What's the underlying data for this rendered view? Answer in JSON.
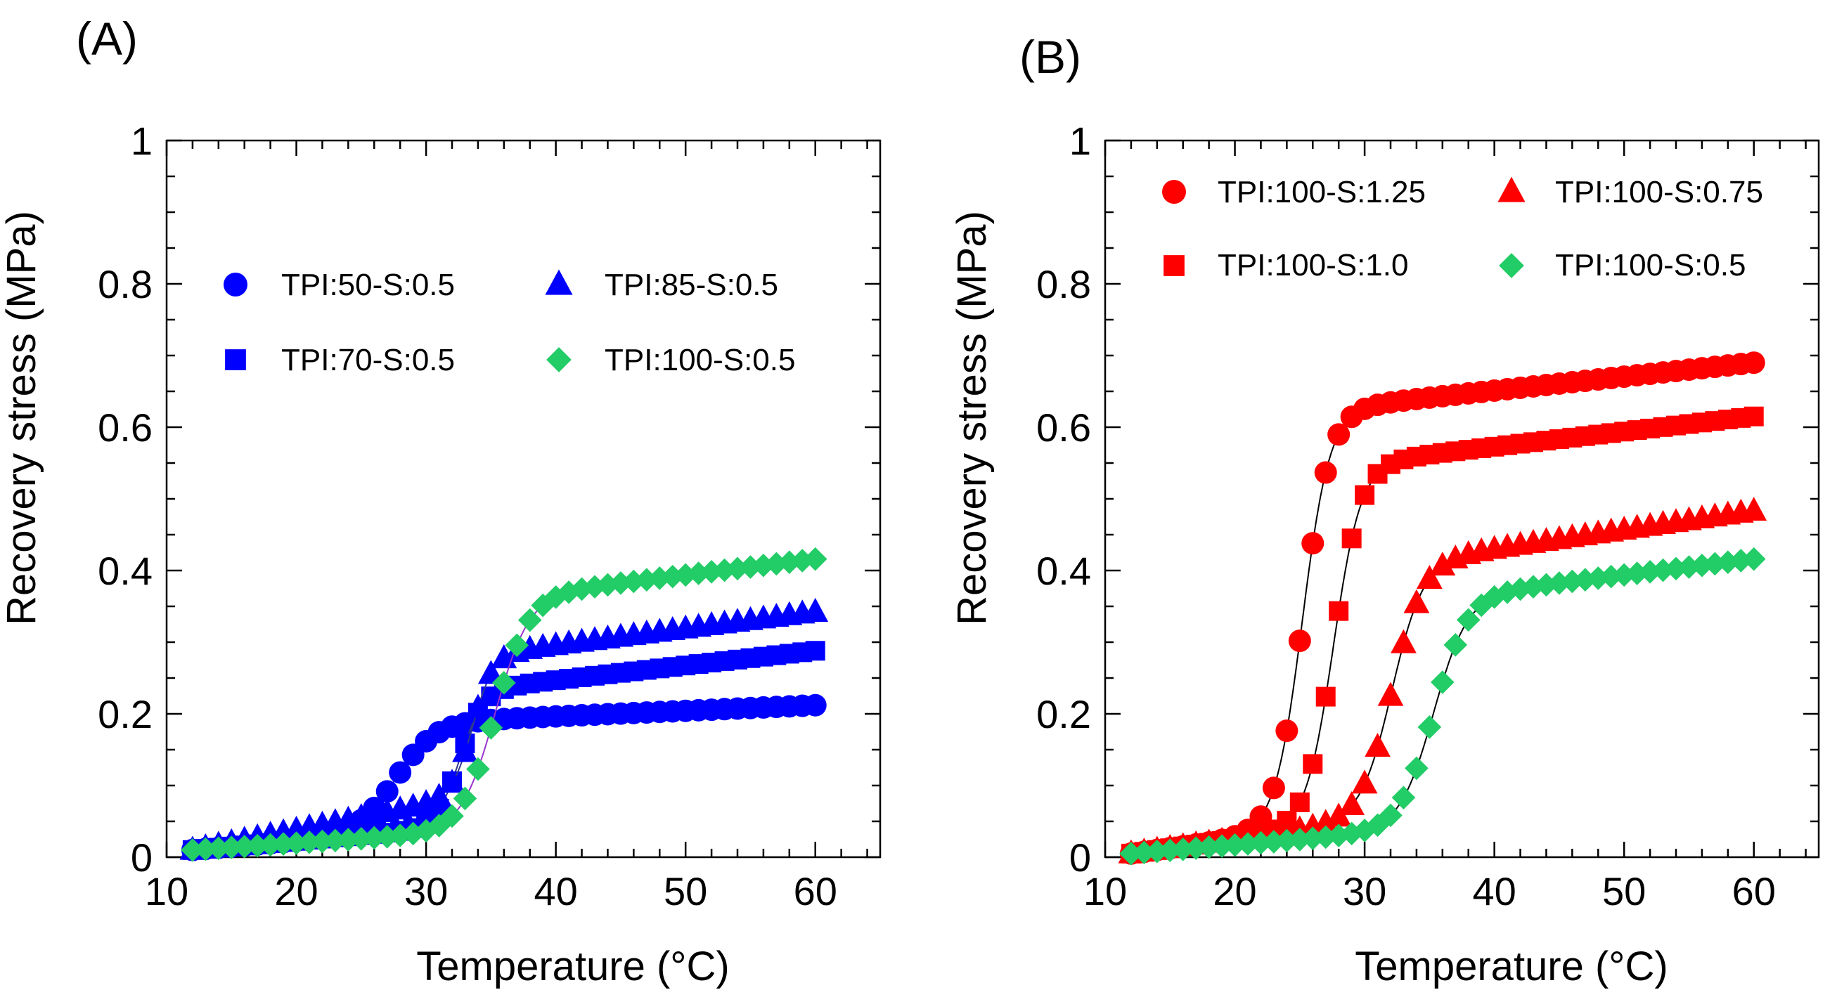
{
  "chart_data": [
    {
      "panel_label": "(A)",
      "type": "scatter",
      "xlabel": "Temperature (°C)",
      "ylabel": "Recovery stress (MPa)",
      "xlim": [
        10,
        65
      ],
      "ylim": [
        0,
        1
      ],
      "xticks": [
        "10",
        "20",
        "30",
        "40",
        "50",
        "60"
      ],
      "yticks": [
        "0",
        "0.2",
        "0.4",
        "0.6",
        "0.8",
        "1"
      ],
      "grid": false,
      "legend_position": "upper-left, two columns",
      "series": [
        {
          "name": "TPI:50-S:0.5",
          "marker": "circle",
          "color": "#0000ff",
          "line_color": "#2e3a8c",
          "x_start": 12,
          "x_end": 60,
          "points": 49,
          "low_start": 0.01,
          "low_slope": 0.0015,
          "plateau_start": 0.19,
          "plateau_end": 0.212,
          "onset": 27.7,
          "width": 1.5
        },
        {
          "name": "TPI:70-S:0.5",
          "marker": "square",
          "color": "#0000ff",
          "line_color": "#2e3a8c",
          "x_start": 12,
          "x_end": 60,
          "points": 49,
          "low_start": 0.01,
          "low_slope": 0.0016,
          "plateau_start": 0.24,
          "plateau_end": 0.288,
          "onset": 32.6,
          "width": 0.9
        },
        {
          "name": "TPI:85-S:0.5",
          "marker": "triangle",
          "color": "#0000ff",
          "line_color": "#2e3a8c",
          "x_start": 12,
          "x_end": 60,
          "points": 49,
          "low_start": 0.01,
          "low_slope": 0.0035,
          "plateau_start": 0.29,
          "plateau_end": 0.342,
          "onset": 33.6,
          "width": 0.8
        },
        {
          "name": "TPI:100-S:0.5",
          "marker": "diamond",
          "color": "#22cc66",
          "line_color": "#9933cc",
          "x_start": 12,
          "x_end": 60,
          "points": 49,
          "low_start": 0.01,
          "low_slope": 0.0012,
          "plateau_start": 0.37,
          "plateau_end": 0.416,
          "onset": 35.3,
          "width": 1.3
        }
      ]
    },
    {
      "panel_label": "(B)",
      "type": "scatter",
      "xlabel": "Temperature (°C)",
      "ylabel": "Recovery stress (MPa)",
      "xlim": [
        10,
        65
      ],
      "ylim": [
        0,
        1
      ],
      "xticks": [
        "10",
        "20",
        "30",
        "40",
        "50",
        "60"
      ],
      "yticks": [
        "0",
        "0.2",
        "0.4",
        "0.6",
        "0.8",
        "1"
      ],
      "grid": false,
      "legend_position": "top, two columns",
      "series": [
        {
          "name": "TPI:100-S:1.25",
          "marker": "circle",
          "color": "#ff0000",
          "line_color": "#000000",
          "x_start": 12,
          "x_end": 60,
          "points": 49,
          "low_start": 0.005,
          "low_slope": 0.0025,
          "plateau_start": 0.63,
          "plateau_end": 0.69,
          "onset": 25.2,
          "width": 1.05
        },
        {
          "name": "TPI:100-S:1.0",
          "marker": "square",
          "color": "#ff0000",
          "line_color": "#000000",
          "x_start": 12,
          "x_end": 60,
          "points": 49,
          "low_start": 0.005,
          "low_slope": 0.0025,
          "plateau_start": 0.555,
          "plateau_end": 0.615,
          "onset": 27.6,
          "width": 1.05
        },
        {
          "name": "TPI:100-S:0.75",
          "marker": "triangle",
          "color": "#ff0000",
          "line_color": "#000000",
          "x_start": 12,
          "x_end": 60,
          "points": 49,
          "low_start": 0.005,
          "low_slope": 0.0025,
          "plateau_start": 0.42,
          "plateau_end": 0.483,
          "onset": 32.1,
          "width": 1.2
        },
        {
          "name": "TPI:100-S:0.5",
          "marker": "diamond",
          "color": "#22cc66",
          "line_color": "#000000",
          "x_start": 12,
          "x_end": 60,
          "points": 49,
          "low_start": 0.005,
          "low_slope": 0.0015,
          "plateau_start": 0.37,
          "plateau_end": 0.416,
          "onset": 35.3,
          "width": 1.3
        }
      ]
    }
  ]
}
